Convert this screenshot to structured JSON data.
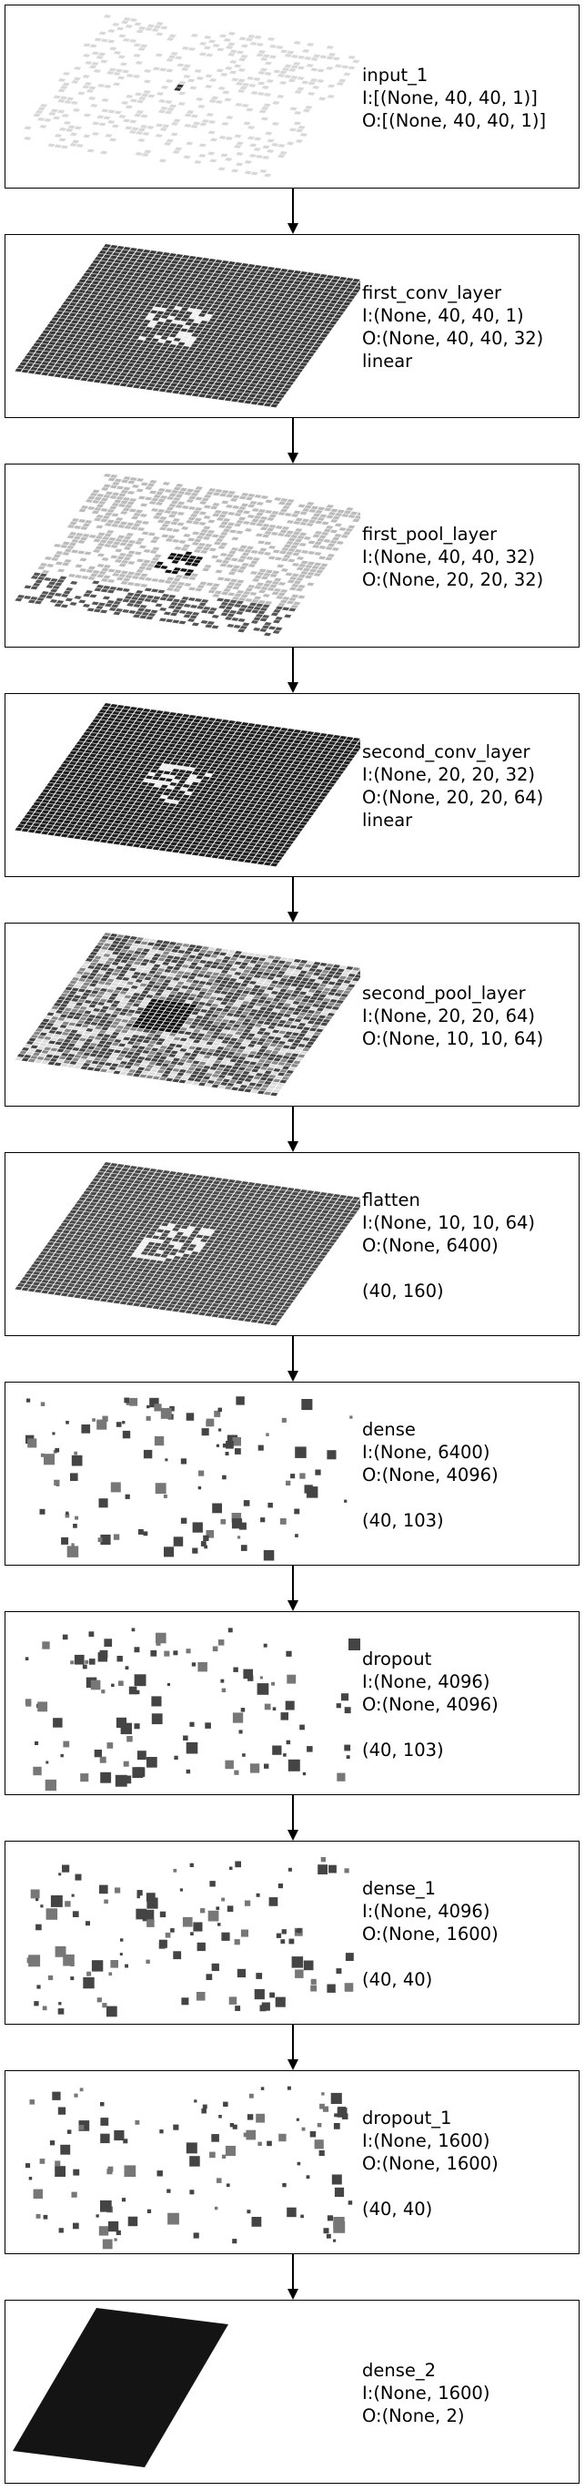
{
  "layers": [
    {
      "name": "input_1",
      "lines": [
        "input_1",
        "I:[(None, 40, 40, 1)]",
        "O:[(None, 40, 40, 1)]"
      ],
      "visualization": "sparse-grid",
      "fill": "#f4f4f4"
    },
    {
      "name": "first_conv_layer",
      "lines": [
        "first_conv_layer",
        "I:(None, 40, 40, 1)",
        "O:(None, 40, 40, 32)",
        "linear"
      ],
      "visualization": "dense-dark-grid",
      "fill": "#3a3a3a"
    },
    {
      "name": "first_pool_layer",
      "lines": [
        "first_pool_layer",
        "I:(None, 40, 40, 32)",
        "O:(None, 20, 20, 32)"
      ],
      "visualization": "light-grid",
      "fill": "#bbbbbb"
    },
    {
      "name": "second_conv_layer",
      "lines": [
        "second_conv_layer",
        "I:(None, 20, 20, 32)",
        "O:(None, 20, 20, 64)",
        "linear"
      ],
      "visualization": "dense-dark-grid",
      "fill": "#1f1f1f"
    },
    {
      "name": "second_pool_layer",
      "lines": [
        "second_pool_layer",
        "I:(None, 20, 20, 64)",
        "O:(None, 10, 10, 64)"
      ],
      "visualization": "mixed-grid",
      "fill": "#8a8a8a"
    },
    {
      "name": "flatten",
      "lines": [
        "flatten",
        "I:(None, 10, 10, 64)",
        "O:(None, 6400)",
        "",
        "(40, 160)"
      ],
      "visualization": "dense-dark-grid",
      "fill": "#4a4a4a"
    },
    {
      "name": "dense",
      "lines": [
        "dense",
        "I:(None, 6400)",
        "O:(None, 4096)",
        "",
        "(40, 103)"
      ],
      "visualization": "scatter",
      "fill": "#444444"
    },
    {
      "name": "dropout",
      "lines": [
        "dropout",
        "I:(None, 4096)",
        "O:(None, 4096)",
        "",
        "(40, 103)"
      ],
      "visualization": "scatter",
      "fill": "#444444"
    },
    {
      "name": "dense_1",
      "lines": [
        "dense_1",
        "I:(None, 4096)",
        "O:(None, 1600)",
        "",
        "(40, 40)"
      ],
      "visualization": "scatter",
      "fill": "#444444"
    },
    {
      "name": "dropout_1",
      "lines": [
        "dropout_1",
        "I:(None, 1600)",
        "O:(None, 1600)",
        "",
        "(40, 40)"
      ],
      "visualization": "scatter",
      "fill": "#444444"
    },
    {
      "name": "dense_2",
      "lines": [
        "dense_2",
        "I:(None, 1600)",
        "O:(None, 2)"
      ],
      "visualization": "solid-block",
      "fill": "#141414"
    }
  ]
}
